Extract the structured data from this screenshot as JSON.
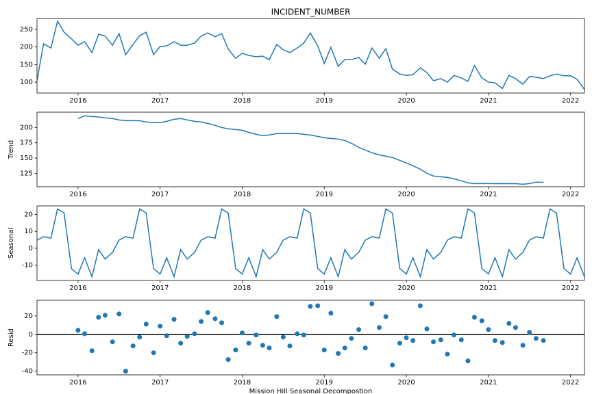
{
  "chart_data": [
    {
      "type": "line",
      "title": "INCIDENT_NUMBER",
      "color": "#1f77b4",
      "x": [
        2015.5,
        2015.58,
        2015.67,
        2015.75,
        2015.83,
        2015.92,
        2016,
        2016.08,
        2016.17,
        2016.25,
        2016.33,
        2016.42,
        2016.5,
        2016.58,
        2016.67,
        2016.75,
        2016.83,
        2016.92,
        2017,
        2017.08,
        2017.17,
        2017.25,
        2017.33,
        2017.42,
        2017.5,
        2017.58,
        2017.67,
        2017.75,
        2017.83,
        2017.92,
        2018,
        2018.08,
        2018.17,
        2018.25,
        2018.33,
        2018.42,
        2018.5,
        2018.58,
        2018.67,
        2018.75,
        2018.83,
        2018.92,
        2019,
        2019.08,
        2019.17,
        2019.25,
        2019.33,
        2019.42,
        2019.5,
        2019.58,
        2019.67,
        2019.75,
        2019.83,
        2019.92,
        2020,
        2020.08,
        2020.17,
        2020.25,
        2020.33,
        2020.42,
        2020.5,
        2020.58,
        2020.67,
        2020.75,
        2020.83,
        2020.92,
        2021,
        2021.08,
        2021.17,
        2021.25,
        2021.33,
        2021.42,
        2021.5,
        2021.58,
        2021.67,
        2021.75,
        2021.83,
        2021.92,
        2022,
        2022.08,
        2022.17
      ],
      "values": [
        104,
        209,
        197,
        273,
        242,
        223,
        205,
        215,
        184,
        236,
        231,
        205,
        238,
        178,
        207,
        232,
        242,
        178,
        201,
        203,
        215,
        205,
        205,
        211,
        231,
        240,
        229,
        238,
        194,
        168,
        182,
        176,
        172,
        174,
        164,
        207,
        192,
        184,
        197,
        211,
        240,
        203,
        153,
        199,
        145,
        164,
        164,
        170,
        151,
        197,
        168,
        195,
        137,
        123,
        119,
        121,
        141,
        127,
        104,
        110,
        100,
        119,
        112,
        102,
        147,
        112,
        100,
        98,
        82,
        119,
        110,
        94,
        116,
        114,
        110,
        118,
        123,
        118,
        118,
        108,
        79
      ],
      "xlim": [
        2015.5,
        2022.17
      ],
      "xticks": [
        2016,
        2017,
        2018,
        2019,
        2020,
        2021,
        2022
      ],
      "ylim": [
        69,
        281
      ],
      "yticks": [
        100,
        150,
        200,
        250
      ]
    },
    {
      "type": "line",
      "ylabel": "Trend",
      "color": "#1f77b4",
      "x": [
        2015.5,
        2015.58,
        2015.67,
        2015.75,
        2015.83,
        2015.92,
        2016,
        2016.08,
        2016.17,
        2016.25,
        2016.33,
        2016.42,
        2016.5,
        2016.58,
        2016.67,
        2016.75,
        2016.83,
        2016.92,
        2017,
        2017.08,
        2017.17,
        2017.25,
        2017.33,
        2017.42,
        2017.5,
        2017.58,
        2017.67,
        2017.75,
        2017.83,
        2017.92,
        2018,
        2018.08,
        2018.17,
        2018.25,
        2018.33,
        2018.42,
        2018.5,
        2018.58,
        2018.67,
        2018.75,
        2018.83,
        2018.92,
        2019,
        2019.08,
        2019.17,
        2019.25,
        2019.33,
        2019.42,
        2019.5,
        2019.58,
        2019.67,
        2019.75,
        2019.83,
        2019.92,
        2020,
        2020.08,
        2020.17,
        2020.25,
        2020.33,
        2020.42,
        2020.5,
        2020.58,
        2020.67,
        2020.75,
        2020.83,
        2020.92,
        2021,
        2021.08,
        2021.17,
        2021.25,
        2021.33,
        2021.42,
        2021.5,
        2021.58,
        2021.67,
        2021.75,
        2021.83,
        2021.92,
        2022,
        2022.08,
        2022.17
      ],
      "values": [
        null,
        null,
        null,
        null,
        null,
        null,
        214.6,
        219,
        218,
        217,
        215.7,
        214.6,
        212.3,
        211.2,
        211.2,
        211,
        209,
        208,
        208,
        210,
        213.4,
        214.6,
        212.3,
        210,
        209,
        206.7,
        203.4,
        200,
        197.8,
        196.6,
        195.5,
        192,
        188.8,
        186.6,
        187.7,
        190,
        190,
        190,
        190,
        188.8,
        187.7,
        185.4,
        183.2,
        182,
        181,
        178.7,
        174.2,
        167.5,
        163,
        158.6,
        155.2,
        153,
        150.7,
        146.2,
        141.8,
        137.3,
        131.7,
        125,
        120.5,
        119.4,
        118.3,
        116,
        112.7,
        109.3,
        108.2,
        108.2,
        108.2,
        108,
        108.2,
        108,
        108,
        107,
        108.2,
        110.4,
        110.4,
        null,
        null,
        null,
        null,
        null,
        null
      ],
      "xlim": [
        2015.5,
        2022.17
      ],
      "xticks": [
        2016,
        2017,
        2018,
        2019,
        2020,
        2021,
        2022
      ],
      "ylim": [
        103,
        225
      ],
      "yticks": [
        125,
        150,
        175,
        200
      ]
    },
    {
      "type": "line",
      "ylabel": "Seasonal",
      "color": "#1f77b4",
      "x": [
        2015.5,
        2015.58,
        2015.67,
        2015.75,
        2015.83,
        2015.92,
        2016,
        2016.08,
        2016.17,
        2016.25,
        2016.33,
        2016.42,
        2016.5,
        2016.58,
        2016.67,
        2016.75,
        2016.83,
        2016.92,
        2017,
        2017.08,
        2017.17,
        2017.25,
        2017.33,
        2017.42,
        2017.5,
        2017.58,
        2017.67,
        2017.75,
        2017.83,
        2017.92,
        2018,
        2018.08,
        2018.17,
        2018.25,
        2018.33,
        2018.42,
        2018.5,
        2018.58,
        2018.67,
        2018.75,
        2018.83,
        2018.92,
        2019,
        2019.08,
        2019.17,
        2019.25,
        2019.33,
        2019.42,
        2019.5,
        2019.58,
        2019.67,
        2019.75,
        2019.83,
        2019.92,
        2020,
        2020.08,
        2020.17,
        2020.25,
        2020.33,
        2020.42,
        2020.5,
        2020.58,
        2020.67,
        2020.75,
        2020.83,
        2020.92,
        2021,
        2021.08,
        2021.17,
        2021.25,
        2021.33,
        2021.42,
        2021.5,
        2021.58,
        2021.67,
        2021.75,
        2021.83,
        2021.92,
        2022,
        2022.08,
        2022.17
      ],
      "values": [
        4.8,
        6.8,
        6,
        23.2,
        20.8,
        -12,
        -15.2,
        -5.6,
        -16.8,
        -0.8,
        -6.4,
        -2.4,
        4.8,
        6.8,
        6,
        23.2,
        20.8,
        -12,
        -15.2,
        -5.6,
        -16.8,
        -0.8,
        -6.4,
        -2.4,
        4.8,
        6.8,
        6,
        23.2,
        20.8,
        -12,
        -15.2,
        -5.6,
        -16.8,
        -0.8,
        -6.4,
        -2.4,
        4.8,
        6.8,
        6,
        23.2,
        20.8,
        -12,
        -15.2,
        -5.6,
        -16.8,
        -0.8,
        -6.4,
        -2.4,
        4.8,
        6.8,
        6,
        23.2,
        20.8,
        -12,
        -15.2,
        -5.6,
        -16.8,
        -0.8,
        -6.4,
        -2.4,
        4.8,
        6.8,
        6,
        23.2,
        20.8,
        -12,
        -15.2,
        -5.6,
        -16.8,
        -0.8,
        -6.4,
        -2.4,
        4.8,
        6.8,
        6,
        23.2,
        20.8,
        -12,
        -15.2,
        -5.6,
        -16.8
      ],
      "xlim": [
        2015.5,
        2022.17
      ],
      "xticks": [
        2016,
        2017,
        2018,
        2019,
        2020,
        2021,
        2022
      ],
      "ylim": [
        -19,
        25
      ],
      "yticks": [
        -10,
        0,
        10,
        20
      ]
    },
    {
      "type": "scatter",
      "ylabel": "Resid",
      "xlabel": "Mission Hill Seasonal Decompostion",
      "color": "#1f77b4",
      "axhline": 0,
      "x": [
        2015.5,
        2015.58,
        2015.67,
        2015.75,
        2015.83,
        2015.92,
        2016,
        2016.08,
        2016.17,
        2016.25,
        2016.33,
        2016.42,
        2016.5,
        2016.58,
        2016.67,
        2016.75,
        2016.83,
        2016.92,
        2017,
        2017.08,
        2017.17,
        2017.25,
        2017.33,
        2017.42,
        2017.5,
        2017.58,
        2017.67,
        2017.75,
        2017.83,
        2017.92,
        2018,
        2018.08,
        2018.17,
        2018.25,
        2018.33,
        2018.42,
        2018.5,
        2018.58,
        2018.67,
        2018.75,
        2018.83,
        2018.92,
        2019,
        2019.08,
        2019.17,
        2019.25,
        2019.33,
        2019.42,
        2019.5,
        2019.58,
        2019.67,
        2019.75,
        2019.83,
        2019.92,
        2020,
        2020.08,
        2020.17,
        2020.25,
        2020.33,
        2020.42,
        2020.5,
        2020.58,
        2020.67,
        2020.75,
        2020.83,
        2020.92,
        2021,
        2021.08,
        2021.17,
        2021.25,
        2021.33,
        2021.42,
        2021.5,
        2021.58,
        2021.67,
        2021.75,
        2021.83,
        2021.92,
        2022,
        2022.08,
        2022.17
      ],
      "values": [
        null,
        null,
        null,
        null,
        null,
        null,
        4.4,
        0.7,
        -17.8,
        18.5,
        20.7,
        -8.1,
        22.2,
        -40,
        -12.6,
        -3,
        11.1,
        -20,
        8.9,
        -1.5,
        16.3,
        -9.6,
        -2.2,
        0.7,
        14,
        23.7,
        17,
        12.6,
        -27.4,
        -17,
        1.5,
        -9.6,
        -0.7,
        -11.9,
        -14.8,
        19.3,
        -3,
        -12.6,
        0.7,
        -0.7,
        30.4,
        31.1,
        -17,
        23,
        -20.7,
        -14.8,
        -4.4,
        5.2,
        -14.8,
        33.3,
        7.4,
        19.3,
        -33.3,
        -9.6,
        -3.7,
        -6.7,
        31.1,
        5.9,
        -8.1,
        -5.9,
        -21.5,
        -0.7,
        -5.9,
        -28.9,
        18.5,
        14.8,
        5.2,
        -6.7,
        -8.9,
        11.9,
        7.4,
        -11.9,
        2.2,
        -4.4,
        -6.7,
        null,
        null,
        null,
        null,
        null,
        null
      ],
      "xlim": [
        2015.5,
        2022.17
      ],
      "xticks": [
        2016,
        2017,
        2018,
        2019,
        2020,
        2021,
        2022
      ],
      "ylim": [
        -44,
        37
      ],
      "yticks": [
        -40,
        -20,
        0,
        20
      ]
    }
  ]
}
